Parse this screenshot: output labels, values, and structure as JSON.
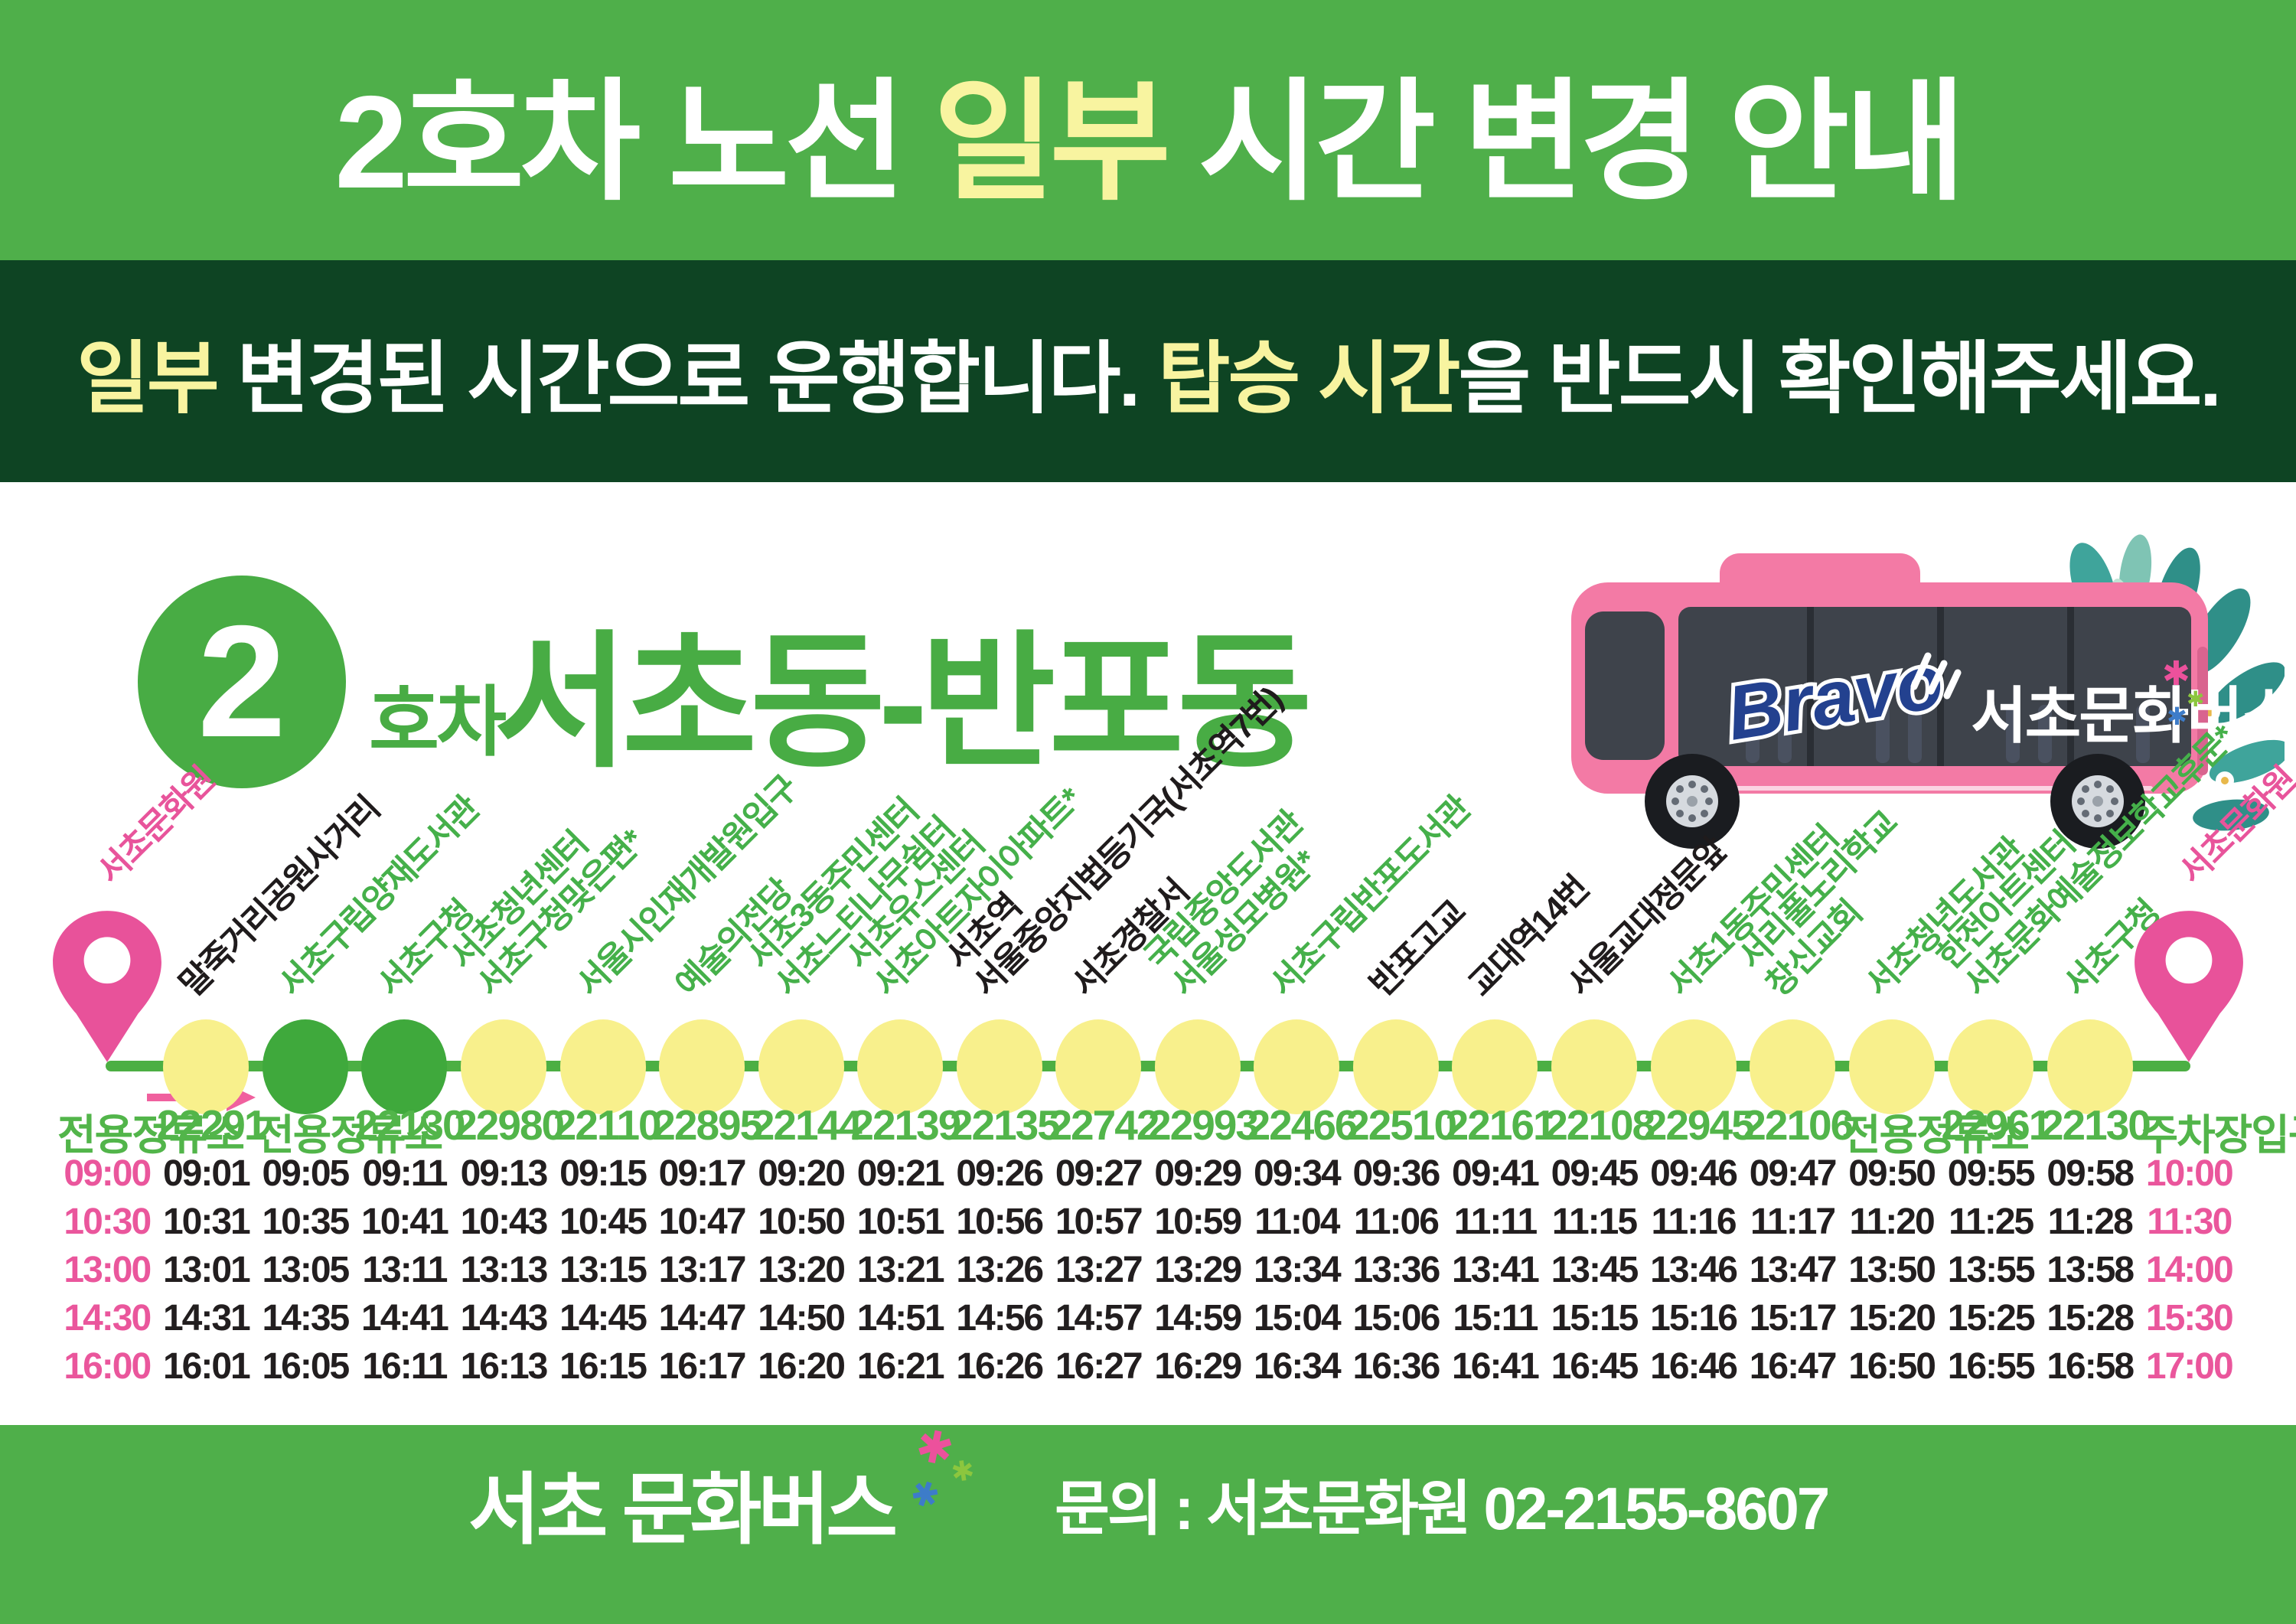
{
  "header": {
    "pre": "2호차 노선 ",
    "highlight": "일부",
    "post": " 시간 변경 안내"
  },
  "notice": {
    "h1": "일부",
    "t1": " 변경된 시간으로 운행합니다. ",
    "h2": "탑승 시간",
    "t2": "을 반드시 확인해주세요."
  },
  "route_title": {
    "number": "2",
    "unit": "호차",
    "name": "서초동-반포동"
  },
  "bus": {
    "script": "Bravo",
    "label": "서초문화버스"
  },
  "colors": {
    "banner_green": "#4FAF4A",
    "dark_green": "#0E4423",
    "highlight_yellow": "#F8F4A0",
    "stop_yellow": "#F8F08C",
    "stop_green": "#3FA93C",
    "accent_pink": "#E8549B",
    "bus_pink": "#F37AA5",
    "text_black": "#221E1F"
  },
  "stops": [
    {
      "label_lines": [
        "서초문화원"
      ],
      "label_color": "pink",
      "marker": "pin",
      "code": "전용정류소"
    },
    {
      "label_lines": [
        "말죽거리공원사거리"
      ],
      "label_color": "black",
      "marker": "yellow",
      "code": "22291"
    },
    {
      "label_lines": [
        "서초구립양재도서관"
      ],
      "label_color": "green",
      "marker": "green",
      "code": "전용정류소"
    },
    {
      "label_lines": [
        "서초구청"
      ],
      "label_color": "green",
      "marker": "green",
      "code": "22130"
    },
    {
      "label_lines": [
        "서초청년센터",
        "서초구청맞은편*"
      ],
      "label_color": "green",
      "marker": "yellow",
      "code": "22980"
    },
    {
      "label_lines": [
        "서울시인재개발원입구"
      ],
      "label_color": "green",
      "marker": "yellow",
      "code": "22110"
    },
    {
      "label_lines": [
        "예술의전당"
      ],
      "label_color": "green",
      "marker": "yellow",
      "code": "22895"
    },
    {
      "label_lines": [
        "서초3동주민센터",
        "서초느티나무쉼터"
      ],
      "label_color": "green",
      "marker": "yellow",
      "code": "22144"
    },
    {
      "label_lines": [
        "서초유스센터",
        "서초아트자이아파트*"
      ],
      "label_color": "green",
      "marker": "yellow",
      "code": "22139"
    },
    {
      "label_lines": [
        "서초역",
        "서울중앙지법등기국(서초역7번)"
      ],
      "label_color": "black",
      "marker": "yellow",
      "code": "22135"
    },
    {
      "label_lines": [
        "서초경찰서"
      ],
      "label_color": "black",
      "marker": "yellow",
      "code": "22742"
    },
    {
      "label_lines": [
        "국립중앙도서관",
        "서울성모병원*"
      ],
      "label_color": "green",
      "marker": "yellow",
      "code": "22993"
    },
    {
      "label_lines": [
        "서초구립반포도서관"
      ],
      "label_color": "green",
      "marker": "yellow",
      "code": "22466"
    },
    {
      "label_lines": [
        "반포고교"
      ],
      "label_color": "black",
      "marker": "yellow",
      "code": "22510"
    },
    {
      "label_lines": [
        "교대역14번"
      ],
      "label_color": "black",
      "marker": "yellow",
      "code": "22161"
    },
    {
      "label_lines": [
        "서울교대정문앞"
      ],
      "label_color": "black",
      "marker": "yellow",
      "code": "22108"
    },
    {
      "label_lines": [
        "서초1동주민센터"
      ],
      "label_color": "green",
      "marker": "yellow",
      "code": "22945"
    },
    {
      "label_lines": [
        "서리풀노리학교",
        "창신교회"
      ],
      "label_color": "green",
      "marker": "yellow",
      "code": "22106"
    },
    {
      "label_lines": [
        "서초청년도서관"
      ],
      "label_color": "green",
      "marker": "yellow",
      "code": "전용정류소"
    },
    {
      "label_lines": [
        "한전아트센터",
        "서초문화예술정보학교후문*"
      ],
      "label_color": "green",
      "marker": "yellow",
      "code": "22961"
    },
    {
      "label_lines": [
        "서초구청"
      ],
      "label_color": "green",
      "marker": "yellow",
      "code": "22130"
    },
    {
      "label_lines": [
        "서초문화원"
      ],
      "label_color": "pink",
      "marker": "pin",
      "code": "주차장입구"
    }
  ],
  "timetable": {
    "rows": [
      [
        "09:00",
        "09:01",
        "09:05",
        "09:11",
        "09:13",
        "09:15",
        "09:17",
        "09:20",
        "09:21",
        "09:26",
        "09:27",
        "09:29",
        "09:34",
        "09:36",
        "09:41",
        "09:45",
        "09:46",
        "09:47",
        "09:50",
        "09:55",
        "09:58",
        "10:00"
      ],
      [
        "10:30",
        "10:31",
        "10:35",
        "10:41",
        "10:43",
        "10:45",
        "10:47",
        "10:50",
        "10:51",
        "10:56",
        "10:57",
        "10:59",
        "11:04",
        "11:06",
        "11:11",
        "11:15",
        "11:16",
        "11:17",
        "11:20",
        "11:25",
        "11:28",
        "11:30"
      ],
      [
        "13:00",
        "13:01",
        "13:05",
        "13:11",
        "13:13",
        "13:15",
        "13:17",
        "13:20",
        "13:21",
        "13:26",
        "13:27",
        "13:29",
        "13:34",
        "13:36",
        "13:41",
        "13:45",
        "13:46",
        "13:47",
        "13:50",
        "13:55",
        "13:58",
        "14:00"
      ],
      [
        "14:30",
        "14:31",
        "14:35",
        "14:41",
        "14:43",
        "14:45",
        "14:47",
        "14:50",
        "14:51",
        "14:56",
        "14:57",
        "14:59",
        "15:04",
        "15:06",
        "15:11",
        "15:15",
        "15:16",
        "15:17",
        "15:20",
        "15:25",
        "15:28",
        "15:30"
      ],
      [
        "16:00",
        "16:01",
        "16:05",
        "16:11",
        "16:13",
        "16:15",
        "16:17",
        "16:20",
        "16:21",
        "16:26",
        "16:27",
        "16:29",
        "16:34",
        "16:36",
        "16:41",
        "16:45",
        "16:46",
        "16:47",
        "16:50",
        "16:55",
        "16:58",
        "17:00"
      ]
    ]
  },
  "footer": {
    "logo": "서초 문화버스",
    "sparkle_glyph": "✱",
    "contact": "문의 : 서초문화원 02-2155-8607"
  }
}
